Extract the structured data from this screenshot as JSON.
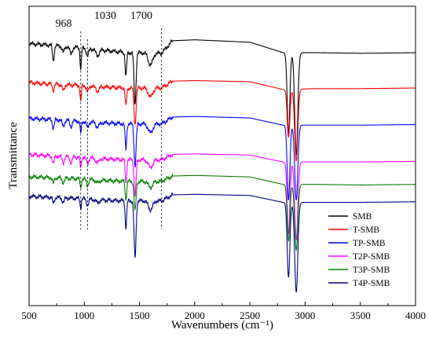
{
  "chart_data": {
    "type": "line",
    "title": "",
    "xlabel": "Wavenumbers (cm⁻¹)",
    "ylabel": "Transmittance",
    "xlim": [
      500,
      4000
    ],
    "x_ticks": [
      "500",
      "1000",
      "1500",
      "2000",
      "2500",
      "3000",
      "3500",
      "4000"
    ],
    "grid": false,
    "legend_position": "bottom-right",
    "annotations": [
      {
        "label": "968",
        "x": 968
      },
      {
        "label": "1030",
        "x": 1030
      },
      {
        "label": "1700",
        "x": 1700
      }
    ],
    "peak_positions": [
      720,
      968,
      1030,
      1377,
      1460,
      1600,
      1700,
      2850,
      2920
    ],
    "series": [
      {
        "name": "SMB",
        "color": "#000000",
        "baseline": [
          [
            500,
            0.875
          ],
          [
            700,
            0.87
          ],
          [
            1000,
            0.86
          ],
          [
            1200,
            0.852
          ],
          [
            1400,
            0.845
          ],
          [
            1700,
            0.843
          ],
          [
            1800,
            0.885
          ],
          [
            2000,
            0.888
          ],
          [
            2500,
            0.88
          ],
          [
            2800,
            0.845
          ],
          [
            3100,
            0.845
          ],
          [
            3500,
            0.843
          ],
          [
            4000,
            0.845
          ]
        ],
        "peaks": [
          [
            720,
            0.05,
            8
          ],
          [
            810,
            0.02,
            10
          ],
          [
            880,
            0.025,
            10
          ],
          [
            968,
            0.07,
            6
          ],
          [
            1030,
            0.025,
            10
          ],
          [
            1120,
            0.02,
            15
          ],
          [
            1377,
            0.08,
            7
          ],
          [
            1460,
            0.17,
            9
          ],
          [
            1600,
            0.04,
            20
          ],
          [
            2850,
            0.27,
            12
          ],
          [
            2920,
            0.34,
            14
          ]
        ]
      },
      {
        "name": "T-SMB",
        "color": "#ff0000",
        "baseline": [
          [
            500,
            0.745
          ],
          [
            700,
            0.74
          ],
          [
            1000,
            0.735
          ],
          [
            1200,
            0.73
          ],
          [
            1400,
            0.727
          ],
          [
            1700,
            0.727
          ],
          [
            1800,
            0.75
          ],
          [
            2000,
            0.752
          ],
          [
            2500,
            0.748
          ],
          [
            2800,
            0.722
          ],
          [
            3100,
            0.725
          ],
          [
            3500,
            0.725
          ],
          [
            4000,
            0.727
          ]
        ],
        "peaks": [
          [
            720,
            0.02,
            8
          ],
          [
            810,
            0.02,
            10
          ],
          [
            968,
            0.055,
            6
          ],
          [
            1030,
            0.02,
            10
          ],
          [
            1120,
            0.015,
            15
          ],
          [
            1377,
            0.06,
            7
          ],
          [
            1460,
            0.12,
            9
          ],
          [
            1600,
            0.03,
            20
          ],
          [
            2850,
            0.16,
            12
          ],
          [
            2920,
            0.24,
            14
          ]
        ]
      },
      {
        "name": "TP-SMB",
        "color": "#0000ff",
        "baseline": [
          [
            500,
            0.625
          ],
          [
            700,
            0.622
          ],
          [
            1000,
            0.615
          ],
          [
            1200,
            0.61
          ],
          [
            1400,
            0.607
          ],
          [
            1700,
            0.607
          ],
          [
            1800,
            0.63
          ],
          [
            2000,
            0.632
          ],
          [
            2500,
            0.627
          ],
          [
            2800,
            0.603
          ],
          [
            3100,
            0.603
          ],
          [
            3500,
            0.603
          ],
          [
            4000,
            0.605
          ]
        ],
        "peaks": [
          [
            720,
            0.03,
            8
          ],
          [
            810,
            0.02,
            10
          ],
          [
            880,
            0.02,
            10
          ],
          [
            968,
            0.04,
            6
          ],
          [
            1030,
            0.02,
            10
          ],
          [
            1120,
            0.015,
            15
          ],
          [
            1377,
            0.085,
            7
          ],
          [
            1460,
            0.14,
            9
          ],
          [
            1600,
            0.03,
            20
          ],
          [
            2850,
            0.25,
            12
          ],
          [
            2920,
            0.25,
            14
          ]
        ]
      },
      {
        "name": "T2P-SMB",
        "color": "#ff00ff",
        "baseline": [
          [
            500,
            0.505
          ],
          [
            700,
            0.5
          ],
          [
            1000,
            0.495
          ],
          [
            1200,
            0.49
          ],
          [
            1400,
            0.487
          ],
          [
            1700,
            0.487
          ],
          [
            1800,
            0.505
          ],
          [
            2000,
            0.507
          ],
          [
            2500,
            0.503
          ],
          [
            2800,
            0.48
          ],
          [
            3100,
            0.48
          ],
          [
            3500,
            0.48
          ],
          [
            4000,
            0.482
          ]
        ],
        "peaks": [
          [
            720,
            0.025,
            8
          ],
          [
            810,
            0.02,
            10
          ],
          [
            880,
            0.02,
            10
          ],
          [
            968,
            0.035,
            6
          ],
          [
            1030,
            0.02,
            10
          ],
          [
            1120,
            0.015,
            15
          ],
          [
            1377,
            0.075,
            7
          ],
          [
            1460,
            0.12,
            9
          ],
          [
            1600,
            0.025,
            20
          ],
          [
            2850,
            0.24,
            12
          ],
          [
            2920,
            0.26,
            14
          ]
        ]
      },
      {
        "name": "T3P-SMB",
        "color": "#008000",
        "baseline": [
          [
            500,
            0.43
          ],
          [
            700,
            0.428
          ],
          [
            1000,
            0.423
          ],
          [
            1200,
            0.418
          ],
          [
            1400,
            0.415
          ],
          [
            1700,
            0.415
          ],
          [
            1800,
            0.433
          ],
          [
            2000,
            0.435
          ],
          [
            2500,
            0.43
          ],
          [
            2800,
            0.405
          ],
          [
            3100,
            0.405
          ],
          [
            3500,
            0.403
          ],
          [
            4000,
            0.405
          ]
        ],
        "peaks": [
          [
            720,
            0.02,
            8
          ],
          [
            810,
            0.015,
            10
          ],
          [
            968,
            0.03,
            6
          ],
          [
            1030,
            0.02,
            10
          ],
          [
            1120,
            0.01,
            15
          ],
          [
            1377,
            0.06,
            7
          ],
          [
            1460,
            0.1,
            9
          ],
          [
            1600,
            0.02,
            20
          ],
          [
            2850,
            0.19,
            12
          ],
          [
            2920,
            0.22,
            14
          ]
        ]
      },
      {
        "name": "T4P-SMB",
        "color": "#000080",
        "baseline": [
          [
            500,
            0.365
          ],
          [
            700,
            0.362
          ],
          [
            1000,
            0.357
          ],
          [
            1200,
            0.352
          ],
          [
            1400,
            0.35
          ],
          [
            1700,
            0.35
          ],
          [
            1800,
            0.37
          ],
          [
            2000,
            0.372
          ],
          [
            2500,
            0.368
          ],
          [
            2800,
            0.345
          ],
          [
            3100,
            0.345
          ],
          [
            3500,
            0.345
          ],
          [
            4000,
            0.347
          ]
        ],
        "peaks": [
          [
            720,
            0.02,
            8
          ],
          [
            810,
            0.015,
            10
          ],
          [
            968,
            0.03,
            6
          ],
          [
            1030,
            0.02,
            10
          ],
          [
            1120,
            0.01,
            15
          ],
          [
            1377,
            0.09,
            7
          ],
          [
            1460,
            0.19,
            9
          ],
          [
            1600,
            0.03,
            20
          ],
          [
            2850,
            0.25,
            12
          ],
          [
            2920,
            0.3,
            14
          ]
        ]
      }
    ]
  }
}
